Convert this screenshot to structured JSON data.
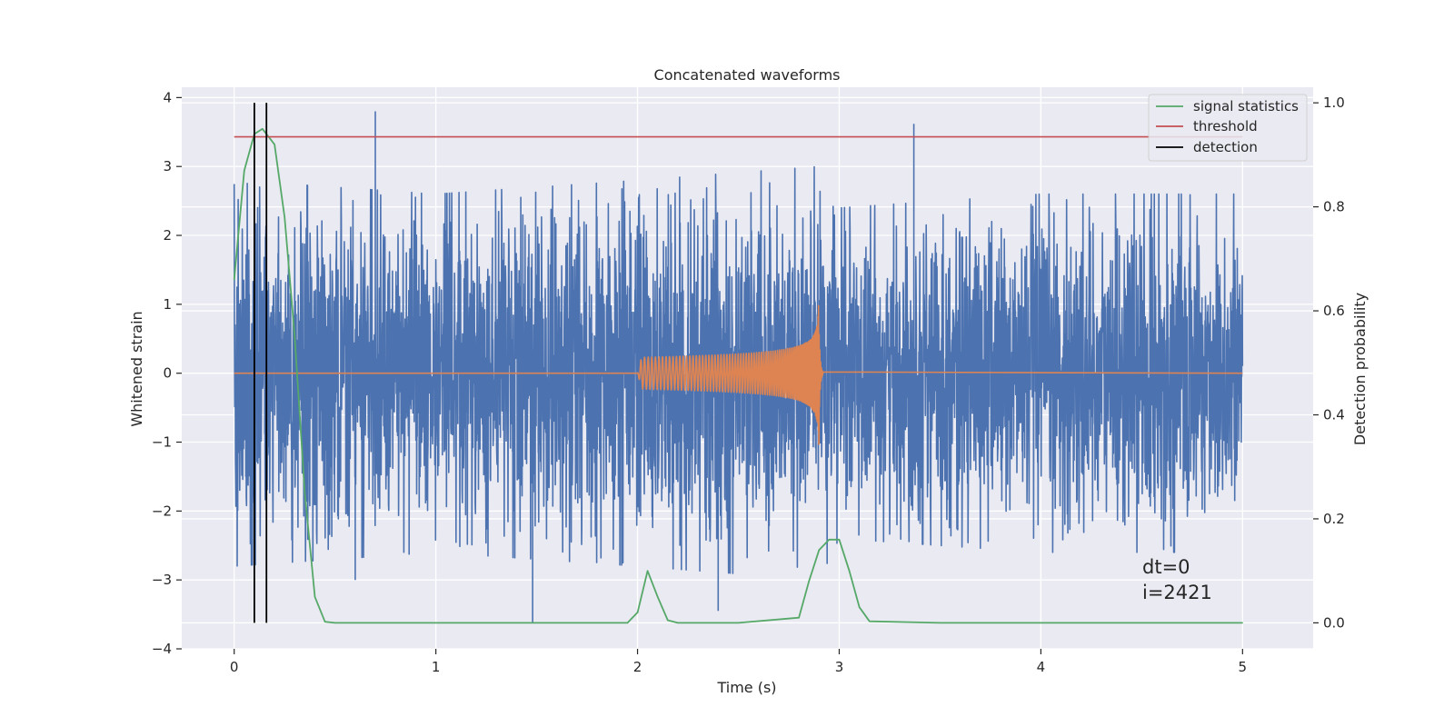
{
  "chart_data": {
    "type": "line",
    "title": "Concatenated waveforms",
    "xlabel": "Time (s)",
    "ylabel": "Whitened strain",
    "ylabel_right": "Detection probability",
    "xlim": [
      -0.26,
      5.35
    ],
    "ylim": [
      -4.0,
      4.15
    ],
    "ylim_right": [
      -0.05,
      1.03
    ],
    "x_ticks": [
      "0",
      "1",
      "2",
      "3",
      "4",
      "5"
    ],
    "y_ticks": [
      "4",
      "3",
      "2",
      "1",
      "0",
      "−1",
      "−2",
      "−3",
      "−4"
    ],
    "y_ticks_right": [
      "1.0",
      "0.8",
      "0.6",
      "0.4",
      "0.2",
      "0.0"
    ],
    "grid": true,
    "legend_position": "top-right",
    "legend": [
      {
        "label": "signal statistics",
        "color": "#55a868"
      },
      {
        "label": "threshold",
        "color": "#c44e52"
      },
      {
        "label": "detection",
        "color": "#000000"
      }
    ],
    "series": [
      {
        "role": "strain",
        "axis": "left",
        "color": "#4c72b0",
        "x_range": [
          0,
          5
        ],
        "envelope": [
          [
            0,
            2.8
          ],
          [
            0.5,
            2.7
          ],
          [
            1,
            2.6
          ],
          [
            2,
            2.8
          ],
          [
            2.9,
            3.0
          ],
          [
            3,
            2.4
          ],
          [
            4,
            2.6
          ],
          [
            5,
            2.6
          ]
        ],
        "peaks": [
          {
            "x": 0.7,
            "y": 3.8
          },
          {
            "x": 3.37,
            "y": 3.62
          },
          {
            "x": 1.48,
            "y": -3.62
          },
          {
            "x": 2.4,
            "y": -3.45
          },
          {
            "x": 0.6,
            "y": -3.0
          }
        ]
      },
      {
        "role": "chirp",
        "axis": "left",
        "color": "#dd8452",
        "x": [
          0,
          2,
          2.9,
          2.92,
          5
        ],
        "y": [
          0,
          0,
          1.15,
          0,
          0
        ]
      },
      {
        "name": "signal statistics",
        "axis": "right",
        "color": "#55a868",
        "x": [
          0,
          0.05,
          0.1,
          0.14,
          0.2,
          0.25,
          0.3,
          0.35,
          0.4,
          0.45,
          0.5,
          1.0,
          1.5,
          1.95,
          2.0,
          2.05,
          2.1,
          2.15,
          2.2,
          2.5,
          2.8,
          2.85,
          2.9,
          2.95,
          3.0,
          3.05,
          3.1,
          3.15,
          3.5,
          4.0,
          4.5,
          5.0
        ],
        "y": [
          0.66,
          0.87,
          0.94,
          0.95,
          0.92,
          0.78,
          0.55,
          0.25,
          0.05,
          0.002,
          0.0,
          0.0,
          0.0,
          0.0,
          0.02,
          0.1,
          0.05,
          0.005,
          0.0,
          0.0,
          0.01,
          0.08,
          0.14,
          0.16,
          0.16,
          0.1,
          0.03,
          0.003,
          0.0,
          0.0,
          0.0,
          0.0
        ]
      },
      {
        "name": "threshold",
        "axis": "left",
        "color": "#c44e52",
        "x": [
          0,
          5
        ],
        "y": [
          3.43,
          3.43
        ]
      }
    ],
    "detections": [
      0.1,
      0.16
    ],
    "detection_range": [
      0.0,
      1.0
    ],
    "annotations": [
      "dt=0",
      "i=2421"
    ]
  }
}
